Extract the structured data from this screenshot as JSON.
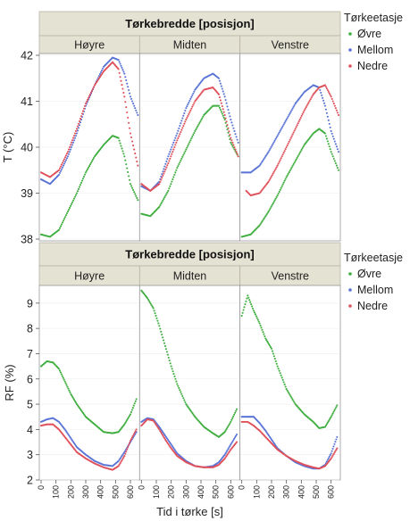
{
  "chart_data": [
    {
      "type": "scatter",
      "title": "Tørkebredde [posisjon]",
      "facets": [
        "Høyre",
        "Midten",
        "Venstre"
      ],
      "ylabel": "T (°C)",
      "xlabel": "",
      "ylim": [
        38,
        42
      ],
      "yticks": [
        38,
        39,
        40,
        41,
        42
      ],
      "xlim": [
        0,
        650
      ],
      "legend_title": "Tørkeetasje",
      "legend_placement": "right",
      "colors": {
        "Øvre": "#3fae3f",
        "Mellom": "#5a74d6",
        "Nedre": "#e0505a"
      },
      "series": [
        {
          "facet": "Høyre",
          "name": "Øvre",
          "x": [
            0,
            60,
            120,
            180,
            240,
            300,
            360,
            420,
            480,
            520,
            560,
            600,
            650
          ],
          "y": [
            38.1,
            38.05,
            38.2,
            38.6,
            39.0,
            39.45,
            39.8,
            40.05,
            40.25,
            40.2,
            39.8,
            39.2,
            38.85
          ]
        },
        {
          "facet": "Høyre",
          "name": "Mellom",
          "x": [
            0,
            60,
            120,
            180,
            240,
            300,
            360,
            420,
            480,
            520,
            560,
            600,
            650
          ],
          "y": [
            39.3,
            39.2,
            39.4,
            39.8,
            40.3,
            40.9,
            41.35,
            41.75,
            41.95,
            41.9,
            41.6,
            41.1,
            40.7
          ]
        },
        {
          "facet": "Høyre",
          "name": "Nedre",
          "x": [
            0,
            60,
            120,
            180,
            240,
            300,
            360,
            420,
            480,
            520,
            560,
            600,
            650
          ],
          "y": [
            39.45,
            39.35,
            39.5,
            39.9,
            40.4,
            40.95,
            41.35,
            41.65,
            41.85,
            41.7,
            41.1,
            40.3,
            39.6
          ]
        },
        {
          "facet": "Midten",
          "name": "Øvre",
          "x": [
            0,
            60,
            120,
            180,
            240,
            300,
            360,
            420,
            480,
            520,
            560,
            600,
            650
          ],
          "y": [
            38.55,
            38.5,
            38.7,
            39.05,
            39.55,
            39.95,
            40.35,
            40.7,
            40.9,
            40.9,
            40.6,
            40.1,
            39.8
          ]
        },
        {
          "facet": "Midten",
          "name": "Mellom",
          "x": [
            0,
            60,
            120,
            180,
            240,
            300,
            360,
            420,
            480,
            520,
            560,
            600,
            650
          ],
          "y": [
            39.15,
            39.05,
            39.25,
            39.8,
            40.3,
            40.85,
            41.25,
            41.5,
            41.6,
            41.5,
            41.1,
            40.6,
            40.1
          ]
        },
        {
          "facet": "Midten",
          "name": "Nedre",
          "x": [
            0,
            60,
            120,
            180,
            240,
            300,
            360,
            420,
            480,
            520,
            560,
            600,
            650
          ],
          "y": [
            39.2,
            39.05,
            39.2,
            39.65,
            40.15,
            40.6,
            41.0,
            41.25,
            41.3,
            41.15,
            40.7,
            40.2,
            39.8
          ]
        },
        {
          "facet": "Venstre",
          "name": "Øvre",
          "x": [
            0,
            60,
            120,
            180,
            240,
            300,
            360,
            420,
            480,
            520,
            560,
            600,
            650
          ],
          "y": [
            38.05,
            38.1,
            38.3,
            38.6,
            38.95,
            39.35,
            39.7,
            40.05,
            40.3,
            40.4,
            40.3,
            39.9,
            39.5
          ]
        },
        {
          "facet": "Venstre",
          "name": "Mellom",
          "x": [
            0,
            60,
            120,
            180,
            240,
            300,
            360,
            420,
            480,
            520,
            560,
            600,
            650
          ],
          "y": [
            39.45,
            39.45,
            39.6,
            39.9,
            40.25,
            40.6,
            40.95,
            41.2,
            41.35,
            41.3,
            40.9,
            40.35,
            39.9
          ]
        },
        {
          "facet": "Venstre",
          "name": "Nedre",
          "x": [
            30,
            60,
            120,
            180,
            240,
            300,
            360,
            420,
            480,
            520,
            560,
            600,
            650
          ],
          "y": [
            39.05,
            38.95,
            39.0,
            39.25,
            39.6,
            40.0,
            40.4,
            40.8,
            41.15,
            41.3,
            41.35,
            41.1,
            40.7
          ]
        }
      ]
    },
    {
      "type": "scatter",
      "title": "Tørkebredde [posisjon]",
      "facets": [
        "Høyre",
        "Midten",
        "Venstre"
      ],
      "ylabel": "RF (%)",
      "xlabel": "Tid i tørke [s]",
      "ylim": [
        2,
        9.7
      ],
      "yticks": [
        2,
        3,
        4,
        5,
        6,
        7,
        8,
        9
      ],
      "xlim": [
        0,
        650
      ],
      "xticks": [
        0,
        100,
        200,
        300,
        400,
        500,
        600
      ],
      "legend_title": "Tørkeetasje",
      "legend_placement": "right",
      "colors": {
        "Øvre": "#3fae3f",
        "Mellom": "#5a74d6",
        "Nedre": "#e0505a"
      },
      "series": [
        {
          "facet": "Høyre",
          "name": "Øvre",
          "x": [
            0,
            40,
            80,
            120,
            160,
            200,
            240,
            300,
            360,
            420,
            480,
            520,
            560,
            600,
            640
          ],
          "y": [
            6.5,
            6.7,
            6.65,
            6.4,
            5.9,
            5.4,
            5.0,
            4.5,
            4.2,
            3.9,
            3.85,
            3.9,
            4.2,
            4.6,
            5.2
          ]
        },
        {
          "facet": "Høyre",
          "name": "Mellom",
          "x": [
            0,
            40,
            80,
            120,
            160,
            200,
            240,
            300,
            360,
            420,
            480,
            520,
            560,
            600,
            640
          ],
          "y": [
            4.3,
            4.4,
            4.45,
            4.3,
            4.0,
            3.65,
            3.3,
            3.0,
            2.75,
            2.6,
            2.55,
            2.75,
            3.1,
            3.5,
            3.9
          ]
        },
        {
          "facet": "Høyre",
          "name": "Nedre",
          "x": [
            0,
            40,
            80,
            120,
            160,
            200,
            240,
            300,
            360,
            420,
            480,
            520,
            560,
            600,
            640
          ],
          "y": [
            4.15,
            4.2,
            4.2,
            4.0,
            3.7,
            3.4,
            3.1,
            2.85,
            2.65,
            2.5,
            2.4,
            2.55,
            2.95,
            3.55,
            4.0
          ]
        },
        {
          "facet": "Midten",
          "name": "Øvre",
          "x": [
            0,
            40,
            80,
            120,
            160,
            200,
            240,
            300,
            360,
            420,
            480,
            520,
            560,
            600,
            640
          ],
          "y": [
            9.5,
            9.2,
            8.8,
            8.1,
            7.3,
            6.5,
            5.8,
            5.0,
            4.5,
            4.1,
            3.85,
            3.7,
            3.9,
            4.3,
            4.8
          ]
        },
        {
          "facet": "Midten",
          "name": "Mellom",
          "x": [
            0,
            40,
            80,
            120,
            160,
            200,
            240,
            300,
            360,
            420,
            480,
            520,
            560,
            600,
            640
          ],
          "y": [
            4.3,
            4.45,
            4.4,
            4.1,
            3.75,
            3.4,
            3.05,
            2.75,
            2.55,
            2.5,
            2.55,
            2.7,
            3.0,
            3.4,
            3.8
          ]
        },
        {
          "facet": "Midten",
          "name": "Nedre",
          "x": [
            0,
            40,
            80,
            120,
            160,
            200,
            240,
            300,
            360,
            420,
            480,
            520,
            560,
            600,
            640
          ],
          "y": [
            4.15,
            4.4,
            4.35,
            4.0,
            3.6,
            3.25,
            2.95,
            2.7,
            2.55,
            2.5,
            2.5,
            2.6,
            2.85,
            3.2,
            3.5
          ]
        },
        {
          "facet": "Venstre",
          "name": "Øvre",
          "x": [
            0,
            40,
            80,
            120,
            160,
            200,
            240,
            300,
            360,
            420,
            480,
            520,
            560,
            600,
            640
          ],
          "y": [
            8.5,
            9.3,
            8.7,
            8.2,
            7.6,
            7.2,
            6.5,
            5.6,
            5.0,
            4.6,
            4.3,
            4.05,
            4.1,
            4.5,
            4.95
          ]
        },
        {
          "facet": "Venstre",
          "name": "Mellom",
          "x": [
            0,
            40,
            80,
            120,
            160,
            200,
            240,
            300,
            360,
            420,
            480,
            520,
            560,
            600,
            640
          ],
          "y": [
            4.5,
            4.5,
            4.5,
            4.25,
            3.95,
            3.6,
            3.25,
            2.95,
            2.7,
            2.55,
            2.45,
            2.45,
            2.6,
            3.05,
            3.7
          ]
        },
        {
          "facet": "Venstre",
          "name": "Nedre",
          "x": [
            0,
            40,
            80,
            120,
            160,
            200,
            240,
            300,
            360,
            420,
            480,
            520,
            560,
            600,
            640
          ],
          "y": [
            4.3,
            4.3,
            4.15,
            3.95,
            3.7,
            3.45,
            3.2,
            2.95,
            2.75,
            2.6,
            2.5,
            2.45,
            2.55,
            2.85,
            3.25
          ]
        }
      ]
    }
  ]
}
